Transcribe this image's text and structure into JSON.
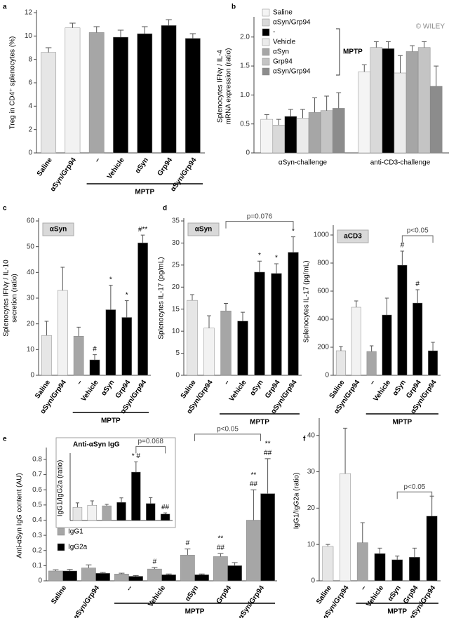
{
  "chart_data": [
    {
      "type": "bar",
      "label": "a",
      "ylabel": [
        "Treg in CD4⁺ splenocytes (%)"
      ],
      "categories": [
        "Saline",
        "αSyn/Grp94",
        "–",
        "Vehicle",
        "αSyn",
        "Grp94",
        "αSyn/Grp94"
      ],
      "values": [
        8.6,
        10.7,
        10.3,
        9.9,
        10.2,
        10.9,
        9.8
      ],
      "errors": [
        0.4,
        0.4,
        0.5,
        0.6,
        0.6,
        0.5,
        0.4
      ],
      "colors": [
        "#e6e6e6",
        "#f2f2f2",
        "#a6a6a6",
        "#000000",
        "#000000",
        "#000000",
        "#000000"
      ],
      "ylim": [
        0,
        12
      ],
      "yticks": [
        0,
        2,
        4,
        6,
        8,
        10,
        12
      ],
      "group": {
        "label": "MPTP",
        "from": 2,
        "to": 6
      }
    },
    {
      "type": "grouped_bar",
      "label": "b",
      "watermark": "© WILEY",
      "ylabel": [
        "Splenocytes IFNγ / IL-4",
        "mRNA expression (ratio)"
      ],
      "categories": [
        "αSyn-challenge",
        "anti-CD3-challenge"
      ],
      "series": [
        {
          "name": "Saline",
          "color": "#f4f4f4",
          "values": [
            0.58,
            1.4
          ],
          "errors": [
            0.08,
            0.12
          ]
        },
        {
          "name": "αSyn/Grp94",
          "color": "#d9d9d9",
          "values": [
            0.48,
            1.82
          ],
          "errors": [
            0.1,
            0.1
          ]
        },
        {
          "name": "-",
          "color": "#000000",
          "values": [
            0.63,
            1.8
          ],
          "errors": [
            0.12,
            0.12
          ]
        },
        {
          "name": "Vehicle",
          "color": "#ebebeb",
          "values": [
            0.6,
            1.38
          ],
          "errors": [
            0.15,
            0.3
          ]
        },
        {
          "name": "αSyn",
          "color": "#a6a6a6",
          "values": [
            0.7,
            1.75
          ],
          "errors": [
            0.25,
            0.1
          ]
        },
        {
          "name": "Grp94",
          "color": "#c4c4c4",
          "values": [
            0.73,
            1.82
          ],
          "errors": [
            0.25,
            0.1
          ]
        },
        {
          "name": "αSyn/Grp94",
          "color": "#8c8c8c",
          "values": [
            0.77,
            1.15
          ],
          "errors": [
            0.27,
            0.35
          ]
        }
      ],
      "legend": "upper-left",
      "legend_group": {
        "label": "MPTP",
        "from": 2,
        "to": 6
      },
      "ylim": [
        0,
        2.3
      ],
      "yticks": [
        0,
        0.5,
        {
          "value": 1,
          "label": "1.0"
        },
        1.5,
        {
          "value": 2,
          "label": "2.0"
        }
      ]
    },
    {
      "type": "bar",
      "label": "c",
      "box_label": "αSyn",
      "ylabel": [
        "Splenocytes IFNγ / IL-10",
        "secretion (ratio)"
      ],
      "categories": [
        "Saline",
        "αSyn/Grp94",
        "–",
        "Vehicle",
        "αSyn",
        "Grp94",
        "αSyn/Grp94"
      ],
      "values": [
        15.5,
        33,
        15.2,
        6,
        25.5,
        22.5,
        51.5
      ],
      "errors": [
        5.5,
        9,
        3.5,
        2,
        9.5,
        6.5,
        3
      ],
      "colors": [
        "#e6e6e6",
        "#f2f2f2",
        "#a6a6a6",
        "#000000",
        "#000000",
        "#000000",
        "#000000"
      ],
      "marks": [
        null,
        null,
        null,
        "#",
        "*",
        "*",
        "#**"
      ],
      "ylim": [
        0,
        60
      ],
      "yticks": [
        0,
        10,
        20,
        30,
        40,
        50,
        60
      ],
      "group": {
        "label": "MPTP",
        "from": 2,
        "to": 6
      }
    },
    {
      "type": "bar",
      "label": "d",
      "box_label": "αSyn",
      "ylabel": [
        "Splenocytes IL-17 (pg/mL)"
      ],
      "categories": [
        "Saline",
        "αSyn/Grp94",
        "–",
        "Vehicle",
        "αSyn",
        "Grp94",
        "αSyn/Grp94"
      ],
      "values": [
        17,
        10.7,
        14.6,
        12.3,
        23.4,
        23.1,
        27.9
      ],
      "errors": [
        1.3,
        2.8,
        1.7,
        2,
        2.5,
        2.2,
        3.5
      ],
      "colors": [
        "#e6e6e6",
        "#f2f2f2",
        "#a6a6a6",
        "#000000",
        "#000000",
        "#000000",
        "#000000"
      ],
      "marks": [
        null,
        null,
        null,
        null,
        "*",
        "*",
        "*"
      ],
      "bracket": {
        "text": "p=0.076",
        "from": 2,
        "to": 6
      },
      "ylim": [
        0,
        35
      ],
      "yticks": [
        0,
        5,
        10,
        15,
        20,
        25,
        30,
        35
      ],
      "group": {
        "label": "MPTP",
        "from": 2,
        "to": 6
      }
    },
    {
      "type": "bar",
      "box_label": "aCD3",
      "ylabel": [
        "Splenocytes IL-17 (pg/mL)"
      ],
      "categories": [
        "Saline",
        "αSyn/Grp94",
        "–",
        "Vehicle",
        "αSyn",
        "Grp94",
        "αSyn/Grp94"
      ],
      "values": [
        175,
        485,
        170,
        430,
        785,
        515,
        175
      ],
      "errors": [
        30,
        45,
        40,
        120,
        100,
        95,
        60
      ],
      "colors": [
        "#e6e6e6",
        "#f2f2f2",
        "#a6a6a6",
        "#000000",
        "#000000",
        "#000000",
        "#000000"
      ],
      "marks": [
        null,
        null,
        null,
        null,
        "#",
        "#",
        null
      ],
      "bracket": {
        "text": "p<0.05",
        "from": 4,
        "to": 6
      },
      "ylim": [
        0,
        1050
      ],
      "yticks": [
        0,
        200,
        400,
        600,
        800,
        1000
      ],
      "group": {
        "label": "MPTP",
        "from": 2,
        "to": 6
      }
    },
    {
      "type": "grouped_bar",
      "label": "e",
      "ylabel": [
        "Anti-αSyn IgG content (AU)"
      ],
      "categories": [
        "Saline",
        "αSyn/Grp94",
        "--",
        "Vehicle",
        "αSyn",
        "Grp94",
        "αSyn/Grp94"
      ],
      "series": [
        {
          "name": "IgG1",
          "color": "#a6a6a6",
          "values": [
            0.065,
            0.085,
            0.045,
            0.078,
            0.17,
            0.16,
            0.4
          ],
          "errors": [
            0.008,
            0.02,
            0.005,
            0.01,
            0.04,
            0.02,
            0.2
          ],
          "marks": [
            null,
            null,
            null,
            "#",
            "#",
            [
              "**",
              "##"
            ],
            [
              "**",
              "##"
            ]
          ]
        },
        {
          "name": "IgG2a",
          "color": "#000000",
          "values": [
            0.065,
            0.05,
            0.03,
            0.04,
            0.04,
            0.1,
            0.575
          ],
          "errors": [
            0.01,
            0.005,
            0.005,
            0.005,
            0.005,
            0.02,
            0.23
          ],
          "marks": [
            null,
            null,
            null,
            null,
            null,
            null,
            [
              "**",
              "##"
            ]
          ]
        }
      ],
      "legend": "lower-left",
      "bracket": {
        "text": "p<0.05",
        "from": 4,
        "to": 6
      },
      "ylim": [
        0,
        0.86
      ],
      "yticks": [
        0,
        0.1,
        0.2,
        0.3,
        0.4,
        0.5,
        0.6,
        0.7,
        0.8
      ],
      "group": {
        "label": "MPTP",
        "from": 2,
        "to": 6
      },
      "inset": {
        "type": "bar",
        "title": "Anti-αSyn IgG",
        "ylabel": [
          "IgG1/IgG2a (ratio)"
        ],
        "values": [
          0.45,
          0.52,
          0.5,
          0.62,
          1.65,
          0.58,
          0.22
        ],
        "errors": [
          0.15,
          0.15,
          0.05,
          0.15,
          0.35,
          0.2,
          0.04
        ],
        "colors": [
          "#e6e6e6",
          "#f2f2f2",
          "#a6a6a6",
          "#000000",
          "#000000",
          "#000000",
          "#000000"
        ],
        "marks": [
          null,
          null,
          null,
          null,
          "* #",
          null,
          "##"
        ],
        "bracket": {
          "text": "p=0.068",
          "from": 4,
          "to": 6
        },
        "ylim": [
          0,
          2.2
        ]
      }
    },
    {
      "type": "bar",
      "label": "f",
      "ylabel": [
        "IgG1/IgG2a (ratio)"
      ],
      "categories": [
        "Saline",
        "αSyn/Grp94",
        "–",
        "Vehicle",
        "αSyn",
        "Grp94",
        "αSyn/Grp94"
      ],
      "values": [
        9.5,
        29.5,
        10.5,
        7.5,
        5.8,
        6.5,
        17.8
      ],
      "errors": [
        0.5,
        12.5,
        5.5,
        1.5,
        1,
        2.5,
        5.5
      ],
      "colors": [
        "#e6e6e6",
        "#f2f2f2",
        "#a6a6a6",
        "#000000",
        "#000000",
        "#000000",
        "#000000"
      ],
      "bracket": {
        "text": "p<0.05",
        "from": 4,
        "to": 6
      },
      "ylim": [
        0,
        44
      ],
      "yticks": [
        0,
        10,
        20,
        30,
        40
      ],
      "group": {
        "label": "MPTP",
        "from": 2,
        "to": 6
      }
    }
  ]
}
